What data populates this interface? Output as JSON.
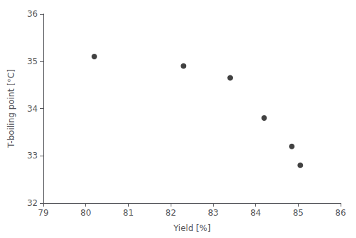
{
  "chart_data": {
    "type": "scatter",
    "x": [
      80.2,
      82.3,
      83.4,
      84.2,
      84.85,
      85.05
    ],
    "values": [
      35.1,
      34.9,
      34.65,
      33.8,
      33.2,
      32.8
    ],
    "xlabel": "Yield [%]",
    "ylabel": "T-boiling point [°C]",
    "xlim": [
      79,
      86
    ],
    "ylim": [
      32,
      36
    ],
    "xticks": [
      79,
      80,
      81,
      82,
      83,
      84,
      85,
      86
    ],
    "yticks": [
      32,
      33,
      34,
      35,
      36
    ],
    "color": "#111111",
    "grid": false
  }
}
